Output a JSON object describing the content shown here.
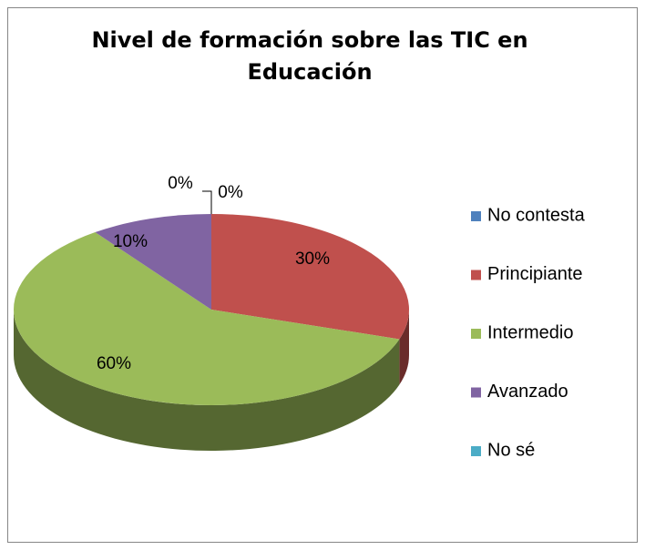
{
  "chart_data": {
    "type": "pie",
    "title": [
      "Nivel de formación sobre las TIC en",
      "Educación"
    ],
    "categories": [
      "No contesta",
      "Principiante",
      "Intermedio",
      "Avanzado",
      "No sé"
    ],
    "values": [
      0,
      30,
      60,
      10,
      0
    ],
    "value_labels": [
      "0%",
      "30%",
      "60%",
      "10%",
      "0%"
    ],
    "colors": [
      "#4f81bd",
      "#c0504d",
      "#9bbb59",
      "#8064a2",
      "#4bacc6"
    ],
    "legend": "right"
  }
}
